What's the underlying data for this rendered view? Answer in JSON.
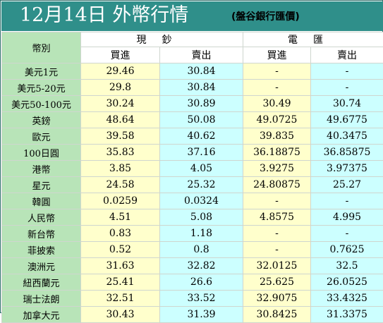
{
  "header": {
    "title": "12月14日 外幣行情",
    "subtitle": "(盤谷銀行匯價)"
  },
  "table": {
    "currency_header": "幣別",
    "cash_group": "現鈔",
    "transfer_group": "電匯",
    "buy_label": "買進",
    "sell_label": "賣出",
    "rows": [
      {
        "currency": "美元1元",
        "cash_buy": "29.46",
        "cash_sell": "30.84",
        "tt_buy": "-",
        "tt_sell": "-"
      },
      {
        "currency": "美元5-20元",
        "cash_buy": "29.8",
        "cash_sell": "30.84",
        "tt_buy": "-",
        "tt_sell": "-"
      },
      {
        "currency": "美元50-100元",
        "cash_buy": "30.24",
        "cash_sell": "30.89",
        "tt_buy": "30.49",
        "tt_sell": "30.74"
      },
      {
        "currency": "英鎊",
        "cash_buy": "48.64",
        "cash_sell": "50.08",
        "tt_buy": "49.0725",
        "tt_sell": "49.6775"
      },
      {
        "currency": "歐元",
        "cash_buy": "39.58",
        "cash_sell": "40.62",
        "tt_buy": "39.835",
        "tt_sell": "40.3475"
      },
      {
        "currency": "100日圓",
        "cash_buy": "35.83",
        "cash_sell": "37.16",
        "tt_buy": "36.18875",
        "tt_sell": "36.85875"
      },
      {
        "currency": "港幣",
        "cash_buy": "3.85",
        "cash_sell": "4.05",
        "tt_buy": "3.9275",
        "tt_sell": "3.97375"
      },
      {
        "currency": "星元",
        "cash_buy": "24.58",
        "cash_sell": "25.32",
        "tt_buy": "24.80875",
        "tt_sell": "25.27"
      },
      {
        "currency": "韓圓",
        "cash_buy": "0.0259",
        "cash_sell": "0.0324",
        "tt_buy": "-",
        "tt_sell": "-"
      },
      {
        "currency": "人民幣",
        "cash_buy": "4.51",
        "cash_sell": "5.08",
        "tt_buy": "4.8575",
        "tt_sell": "4.995"
      },
      {
        "currency": "新台幣",
        "cash_buy": "0.83",
        "cash_sell": "1.18",
        "tt_buy": "-",
        "tt_sell": "-"
      },
      {
        "currency": "菲披索",
        "cash_buy": "0.52",
        "cash_sell": "0.8",
        "tt_buy": "-",
        "tt_sell": "0.7625"
      },
      {
        "currency": "澳洲元",
        "cash_buy": "31.63",
        "cash_sell": "32.82",
        "tt_buy": "32.0125",
        "tt_sell": "32.5"
      },
      {
        "currency": "紐西蘭元",
        "cash_buy": "25.41",
        "cash_sell": "26.6",
        "tt_buy": "25.625",
        "tt_sell": "26.0525"
      },
      {
        "currency": "瑞士法朗",
        "cash_buy": "32.51",
        "cash_sell": "33.52",
        "tt_buy": "32.9075",
        "tt_sell": "33.4325"
      },
      {
        "currency": "加拿大元",
        "cash_buy": "30.43",
        "cash_sell": "31.39",
        "tt_buy": "30.8425",
        "tt_sell": "31.3375"
      }
    ]
  },
  "colors": {
    "header_bg": "#2f8f8a",
    "label_bg": "#b8e4b8",
    "buy_bg": "#ffffcc",
    "sell_bg": "#ccffff"
  }
}
